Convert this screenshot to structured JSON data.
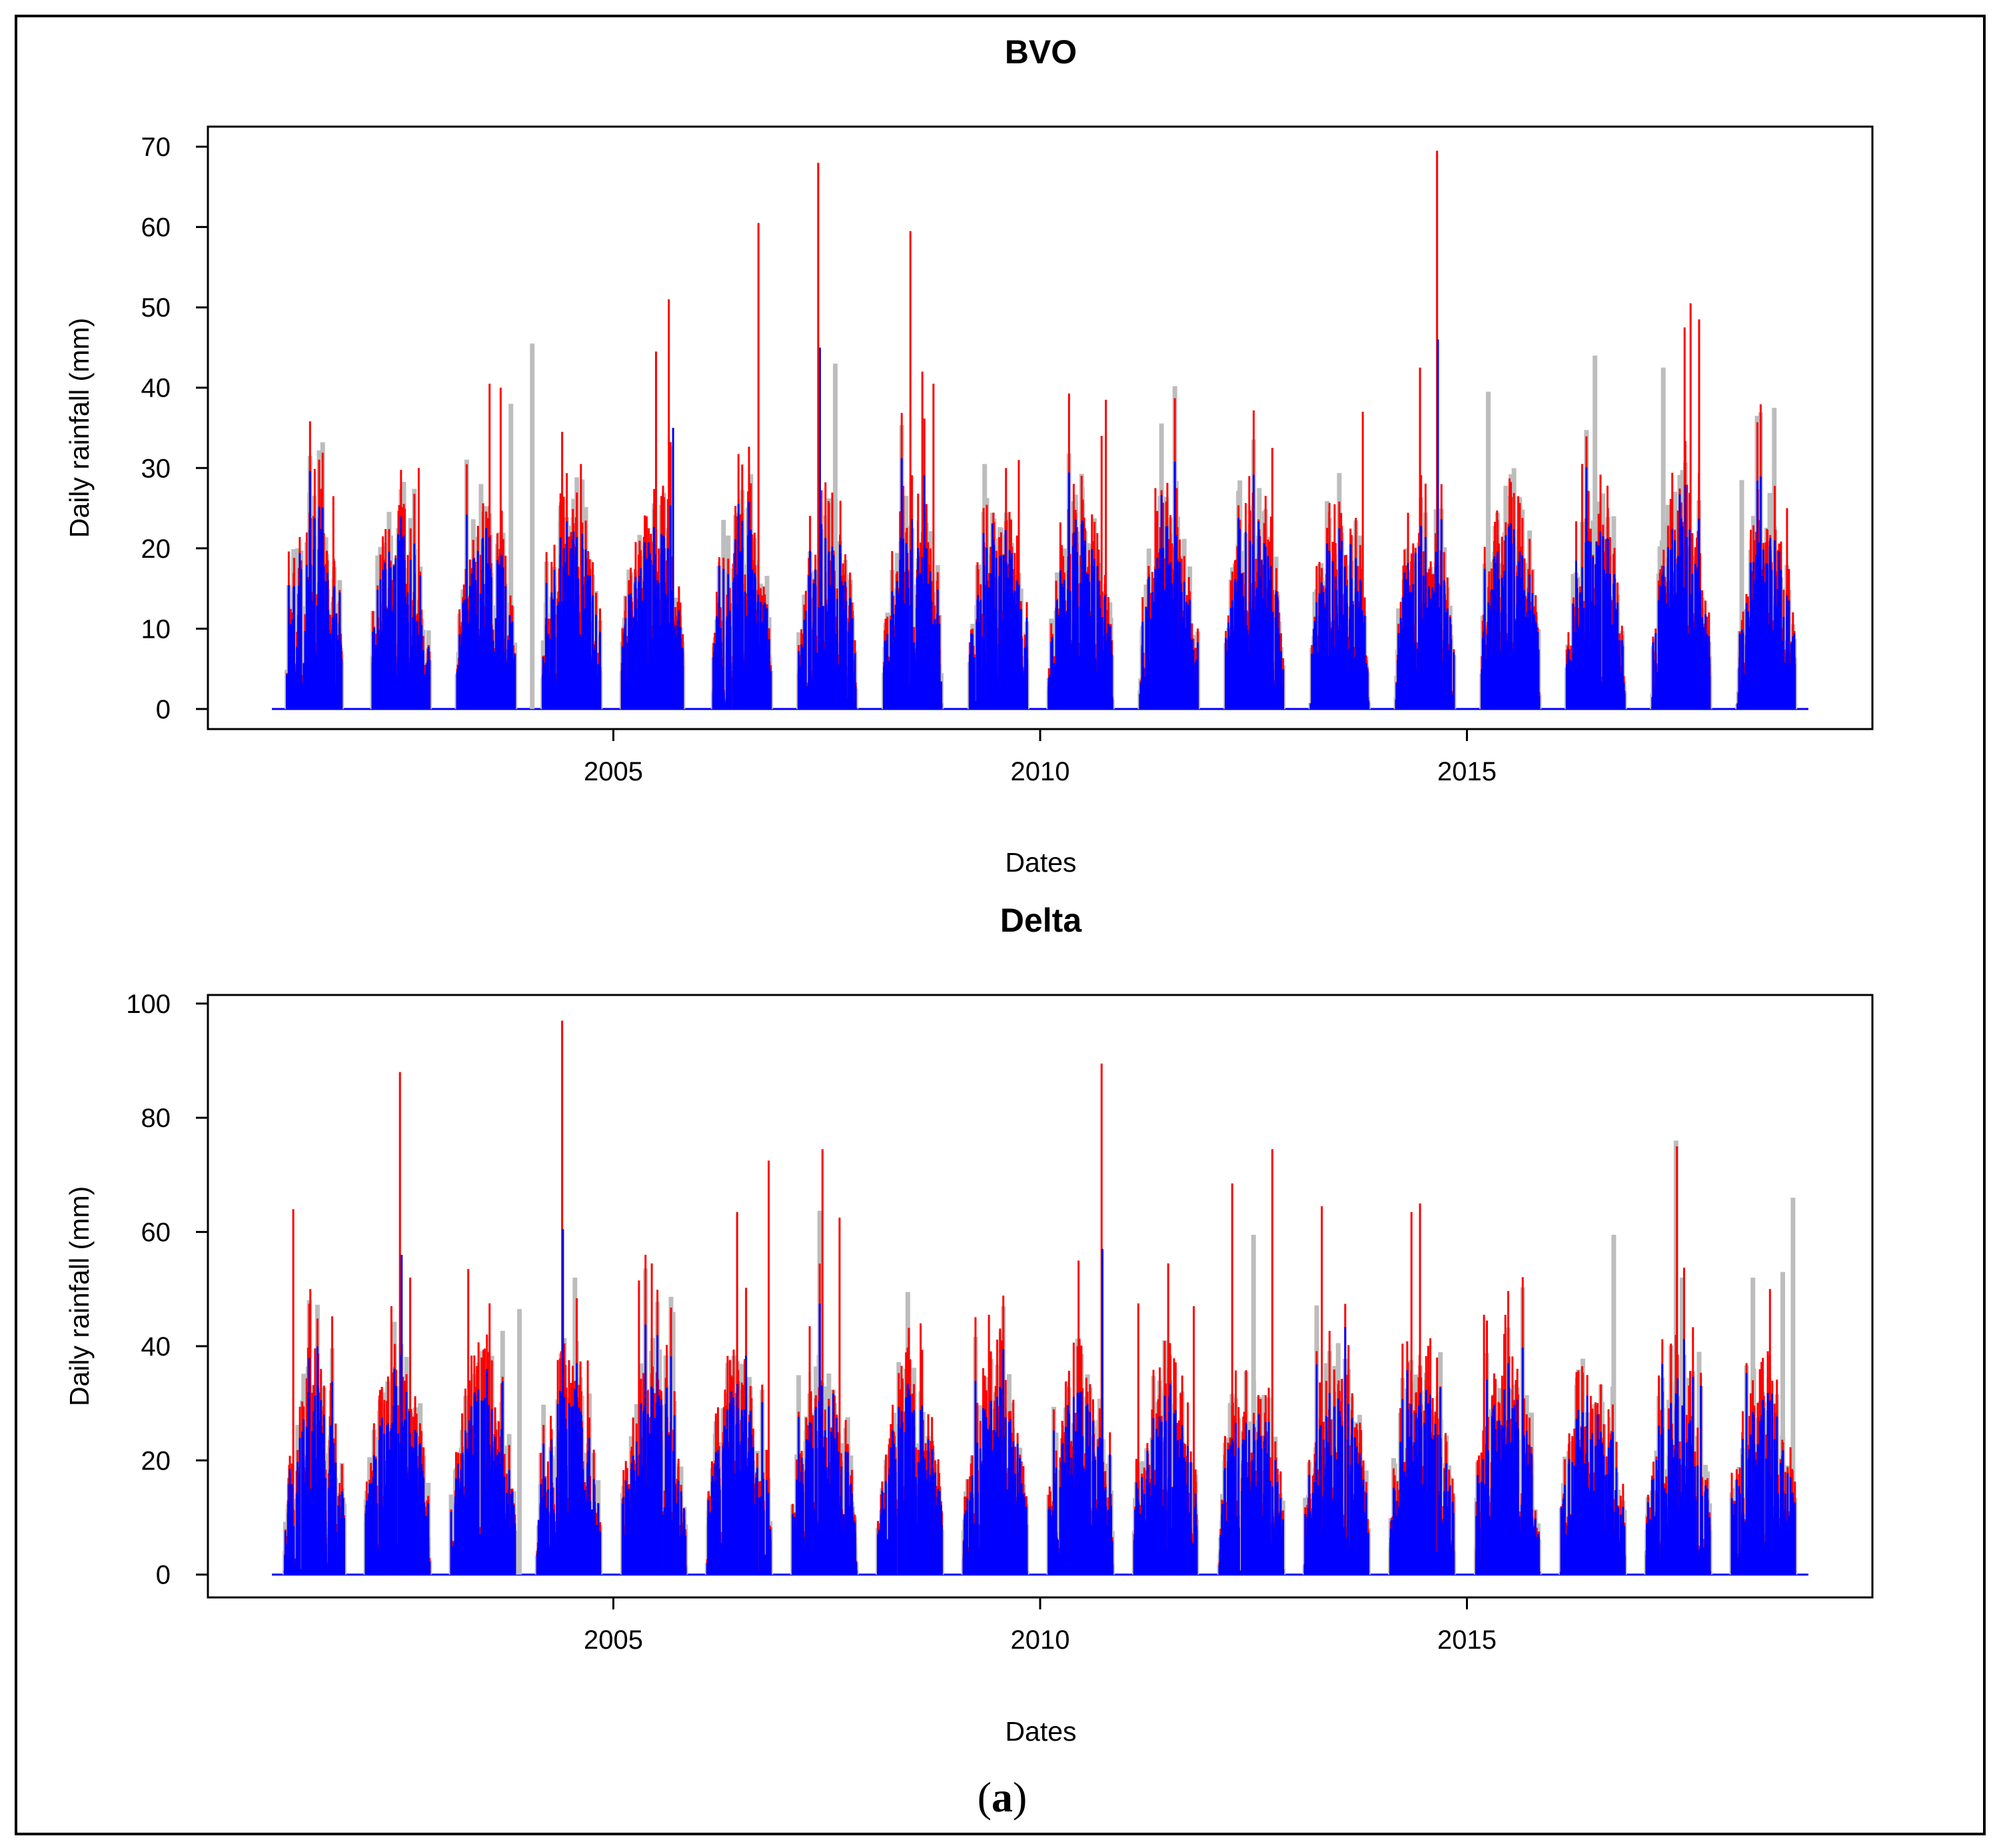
{
  "figure": {
    "caption_open": "(",
    "caption_letter": "a",
    "caption_close": ")",
    "colors": {
      "series_gray": "#bdbdbd",
      "series_red": "#ff0000",
      "series_blue": "#0000ff"
    }
  },
  "chart_data": [
    {
      "type": "bar",
      "title": "BVO",
      "xlabel": "Dates",
      "ylabel": "Daily rainfall (mm)",
      "xlim": [
        2000.25,
        2019.75
      ],
      "ylim": [
        -2.5,
        72.5
      ],
      "x_ticks": [
        {
          "value": 2005,
          "label": "2005"
        },
        {
          "value": 2010,
          "label": "2010"
        },
        {
          "value": 2015,
          "label": "2015"
        }
      ],
      "y_ticks": [
        {
          "value": 0,
          "label": "0"
        },
        {
          "value": 10,
          "label": "10"
        },
        {
          "value": 20,
          "label": "20"
        },
        {
          "value": 30,
          "label": "30"
        },
        {
          "value": 40,
          "label": "40"
        },
        {
          "value": 50,
          "label": "50"
        },
        {
          "value": 60,
          "label": "60"
        },
        {
          "value": 70,
          "label": "70"
        }
      ],
      "date_range": [
        2001.0,
        2019.0
      ],
      "series_note": "Three overlaid daily series (gray, red, blue); seasonal rain periods per year with peak daily values below.",
      "seasons": [
        {
          "year": 2001,
          "start": 2001.17,
          "end": 2001.82
        },
        {
          "year": 2002,
          "start": 2002.17,
          "end": 2002.85
        },
        {
          "year": 2003,
          "start": 2003.17,
          "end": 2003.85
        },
        {
          "year": 2004,
          "start": 2004.17,
          "end": 2004.85
        },
        {
          "year": 2005,
          "start": 2005.1,
          "end": 2005.82
        },
        {
          "year": 2006,
          "start": 2006.17,
          "end": 2006.85
        },
        {
          "year": 2007,
          "start": 2007.17,
          "end": 2007.85
        },
        {
          "year": 2008,
          "start": 2008.17,
          "end": 2008.85
        },
        {
          "year": 2009,
          "start": 2009.17,
          "end": 2009.85
        },
        {
          "year": 2010,
          "start": 2010.1,
          "end": 2010.85
        },
        {
          "year": 2011,
          "start": 2011.17,
          "end": 2011.85
        },
        {
          "year": 2012,
          "start": 2012.17,
          "end": 2012.85
        },
        {
          "year": 2013,
          "start": 2013.17,
          "end": 2013.85
        },
        {
          "year": 2014,
          "start": 2014.17,
          "end": 2014.85
        },
        {
          "year": 2015,
          "start": 2015.17,
          "end": 2015.85
        },
        {
          "year": 2016,
          "start": 2016.17,
          "end": 2016.85
        },
        {
          "year": 2017,
          "start": 2017.17,
          "end": 2017.85
        },
        {
          "year": 2018,
          "start": 2018.17,
          "end": 2018.85
        }
      ],
      "peaks": [
        {
          "x": 2001.3,
          "v": 20,
          "s": "gray"
        },
        {
          "x": 2001.5,
          "v": 22,
          "s": "red"
        },
        {
          "x": 2001.72,
          "v": 26.5,
          "s": "red"
        },
        {
          "x": 2002.3,
          "v": 21.5,
          "s": "red"
        },
        {
          "x": 2002.5,
          "v": 25,
          "s": "red"
        },
        {
          "x": 2002.72,
          "v": 30,
          "s": "red"
        },
        {
          "x": 2003.45,
          "v": 28,
          "s": "gray"
        },
        {
          "x": 2003.55,
          "v": 40.5,
          "s": "red"
        },
        {
          "x": 2003.68,
          "v": 40,
          "s": "red"
        },
        {
          "x": 2003.8,
          "v": 38,
          "s": "gray"
        },
        {
          "x": 2004.05,
          "v": 45.5,
          "s": "gray"
        },
        {
          "x": 2004.4,
          "v": 34.5,
          "s": "red"
        },
        {
          "x": 2004.62,
          "v": 30.5,
          "s": "red"
        },
        {
          "x": 2005.5,
          "v": 44.5,
          "s": "red"
        },
        {
          "x": 2005.65,
          "v": 51,
          "s": "red"
        },
        {
          "x": 2005.7,
          "v": 35,
          "s": "blue"
        },
        {
          "x": 2006.45,
          "v": 24,
          "s": "red"
        },
        {
          "x": 2006.7,
          "v": 60.5,
          "s": "red"
        },
        {
          "x": 2007.4,
          "v": 68,
          "s": "red"
        },
        {
          "x": 2007.42,
          "v": 45,
          "s": "blue"
        },
        {
          "x": 2007.6,
          "v": 43,
          "s": "gray"
        },
        {
          "x": 2008.48,
          "v": 59.5,
          "s": "red"
        },
        {
          "x": 2008.62,
          "v": 42,
          "s": "red"
        },
        {
          "x": 2008.75,
          "v": 40.5,
          "s": "red"
        },
        {
          "x": 2009.35,
          "v": 30.5,
          "s": "gray"
        },
        {
          "x": 2009.6,
          "v": 30,
          "s": "red"
        },
        {
          "x": 2009.75,
          "v": 31,
          "s": "red"
        },
        {
          "x": 2010.72,
          "v": 34,
          "s": "red"
        },
        {
          "x": 2010.77,
          "v": 38.5,
          "s": "red"
        },
        {
          "x": 2011.35,
          "v": 27.5,
          "s": "red"
        },
        {
          "x": 2011.6,
          "v": 27.5,
          "s": "red"
        },
        {
          "x": 2012.45,
          "v": 29,
          "s": "red"
        },
        {
          "x": 2012.72,
          "v": 32.5,
          "s": "red"
        },
        {
          "x": 2013.45,
          "v": 25.5,
          "s": "red"
        },
        {
          "x": 2013.78,
          "v": 37,
          "s": "red"
        },
        {
          "x": 2014.45,
          "v": 42.5,
          "s": "red"
        },
        {
          "x": 2014.65,
          "v": 69.5,
          "s": "red"
        },
        {
          "x": 2014.66,
          "v": 46,
          "s": "blue"
        },
        {
          "x": 2015.25,
          "v": 39.5,
          "s": "gray"
        },
        {
          "x": 2015.6,
          "v": 26.5,
          "s": "red"
        },
        {
          "x": 2016.35,
          "v": 30.5,
          "s": "red"
        },
        {
          "x": 2016.5,
          "v": 44,
          "s": "gray"
        },
        {
          "x": 2016.72,
          "v": 24,
          "s": "gray"
        },
        {
          "x": 2017.3,
          "v": 42.5,
          "s": "gray"
        },
        {
          "x": 2017.55,
          "v": 47.5,
          "s": "red"
        },
        {
          "x": 2017.62,
          "v": 50.5,
          "s": "red"
        },
        {
          "x": 2017.72,
          "v": 48.5,
          "s": "red"
        },
        {
          "x": 2018.22,
          "v": 28.5,
          "s": "gray"
        },
        {
          "x": 2018.4,
          "v": 36.5,
          "s": "gray"
        },
        {
          "x": 2018.6,
          "v": 37.5,
          "s": "gray"
        },
        {
          "x": 2018.75,
          "v": 25,
          "s": "red"
        }
      ]
    },
    {
      "type": "bar",
      "title": "Delta",
      "xlabel": "Dates",
      "ylabel": "Daily rainfall (mm)",
      "xlim": [
        2000.25,
        2019.75
      ],
      "ylim": [
        -4,
        101.5
      ],
      "x_ticks": [
        {
          "value": 2005,
          "label": "2005"
        },
        {
          "value": 2010,
          "label": "2010"
        },
        {
          "value": 2015,
          "label": "2015"
        }
      ],
      "y_ticks": [
        {
          "value": 0,
          "label": "0"
        },
        {
          "value": 20,
          "label": "20"
        },
        {
          "value": 40,
          "label": "40"
        },
        {
          "value": 60,
          "label": "60"
        },
        {
          "value": 80,
          "label": "80"
        },
        {
          "value": 100,
          "label": "100"
        }
      ],
      "date_range": [
        2001.0,
        2019.0
      ],
      "series_note": "Three overlaid daily series (gray, red, blue); seasonal rain periods per year with peak daily values below.",
      "seasons": [
        {
          "year": 2001,
          "start": 2001.15,
          "end": 2001.85
        },
        {
          "year": 2002,
          "start": 2002.1,
          "end": 2002.85
        },
        {
          "year": 2003,
          "start": 2003.1,
          "end": 2003.85
        },
        {
          "year": 2004,
          "start": 2004.1,
          "end": 2004.85
        },
        {
          "year": 2005,
          "start": 2005.1,
          "end": 2005.85
        },
        {
          "year": 2006,
          "start": 2006.1,
          "end": 2006.85
        },
        {
          "year": 2007,
          "start": 2007.1,
          "end": 2007.85
        },
        {
          "year": 2008,
          "start": 2008.1,
          "end": 2008.85
        },
        {
          "year": 2009,
          "start": 2009.1,
          "end": 2009.85
        },
        {
          "year": 2010,
          "start": 2010.1,
          "end": 2010.85
        },
        {
          "year": 2011,
          "start": 2011.1,
          "end": 2011.85
        },
        {
          "year": 2012,
          "start": 2012.1,
          "end": 2012.85
        },
        {
          "year": 2013,
          "start": 2013.1,
          "end": 2013.85
        },
        {
          "year": 2014,
          "start": 2014.1,
          "end": 2014.85
        },
        {
          "year": 2015,
          "start": 2015.1,
          "end": 2015.85
        },
        {
          "year": 2016,
          "start": 2016.1,
          "end": 2016.85
        },
        {
          "year": 2017,
          "start": 2017.1,
          "end": 2017.85
        },
        {
          "year": 2018,
          "start": 2018.1,
          "end": 2018.85
        }
      ],
      "peaks": [
        {
          "x": 2001.25,
          "v": 64,
          "s": "red"
        },
        {
          "x": 2001.45,
          "v": 50,
          "s": "red"
        },
        {
          "x": 2001.55,
          "v": 30.5,
          "s": "red"
        },
        {
          "x": 2002.4,
          "v": 47,
          "s": "red"
        },
        {
          "x": 2002.5,
          "v": 88,
          "s": "red"
        },
        {
          "x": 2002.52,
          "v": 56,
          "s": "blue"
        },
        {
          "x": 2002.62,
          "v": 52,
          "s": "red"
        },
        {
          "x": 2003.3,
          "v": 53.5,
          "s": "red"
        },
        {
          "x": 2003.55,
          "v": 47.5,
          "s": "red"
        },
        {
          "x": 2003.9,
          "v": 46.5,
          "s": "gray"
        },
        {
          "x": 2004.4,
          "v": 97,
          "s": "red"
        },
        {
          "x": 2004.41,
          "v": 60.5,
          "s": "blue"
        },
        {
          "x": 2004.55,
          "v": 52,
          "s": "gray"
        },
        {
          "x": 2004.7,
          "v": 37.5,
          "s": "red"
        },
        {
          "x": 2005.3,
          "v": 51.5,
          "s": "red"
        },
        {
          "x": 2005.45,
          "v": 54.5,
          "s": "red"
        },
        {
          "x": 2005.7,
          "v": 46,
          "s": "gray"
        },
        {
          "x": 2006.45,
          "v": 63.5,
          "s": "red"
        },
        {
          "x": 2006.82,
          "v": 72.5,
          "s": "red"
        },
        {
          "x": 2007.3,
          "v": 43.5,
          "s": "red"
        },
        {
          "x": 2007.45,
          "v": 74.5,
          "s": "red"
        },
        {
          "x": 2007.65,
          "v": 62.5,
          "s": "red"
        },
        {
          "x": 2008.45,
          "v": 49.5,
          "s": "gray"
        },
        {
          "x": 2008.6,
          "v": 44,
          "s": "red"
        },
        {
          "x": 2009.4,
          "v": 45.5,
          "s": "red"
        },
        {
          "x": 2009.55,
          "v": 41,
          "s": "red"
        },
        {
          "x": 2010.45,
          "v": 55,
          "s": "red"
        },
        {
          "x": 2010.72,
          "v": 89.5,
          "s": "red"
        },
        {
          "x": 2010.73,
          "v": 57,
          "s": "blue"
        },
        {
          "x": 2011.15,
          "v": 47.5,
          "s": "red"
        },
        {
          "x": 2011.5,
          "v": 54.5,
          "s": "red"
        },
        {
          "x": 2011.8,
          "v": 47,
          "s": "red"
        },
        {
          "x": 2012.25,
          "v": 68.5,
          "s": "red"
        },
        {
          "x": 2012.5,
          "v": 59.5,
          "s": "gray"
        },
        {
          "x": 2012.72,
          "v": 74.5,
          "s": "red"
        },
        {
          "x": 2013.3,
          "v": 64.5,
          "s": "red"
        },
        {
          "x": 2013.6,
          "v": 35,
          "s": "red"
        },
        {
          "x": 2014.35,
          "v": 63.5,
          "s": "red"
        },
        {
          "x": 2014.45,
          "v": 65,
          "s": "red"
        },
        {
          "x": 2014.65,
          "v": 38,
          "s": "red"
        },
        {
          "x": 2015.2,
          "v": 45.5,
          "s": "red"
        },
        {
          "x": 2015.45,
          "v": 45.5,
          "s": "red"
        },
        {
          "x": 2016.35,
          "v": 36.5,
          "s": "red"
        },
        {
          "x": 2016.72,
          "v": 59.5,
          "s": "gray"
        },
        {
          "x": 2017.45,
          "v": 76,
          "s": "gray"
        },
        {
          "x": 2017.46,
          "v": 75,
          "s": "red"
        },
        {
          "x": 2017.52,
          "v": 52,
          "s": "gray"
        },
        {
          "x": 2017.72,
          "v": 39,
          "s": "gray"
        },
        {
          "x": 2018.35,
          "v": 52,
          "s": "gray"
        },
        {
          "x": 2018.55,
          "v": 50,
          "s": "red"
        },
        {
          "x": 2018.7,
          "v": 53,
          "s": "gray"
        },
        {
          "x": 2018.82,
          "v": 66,
          "s": "gray"
        }
      ]
    }
  ]
}
